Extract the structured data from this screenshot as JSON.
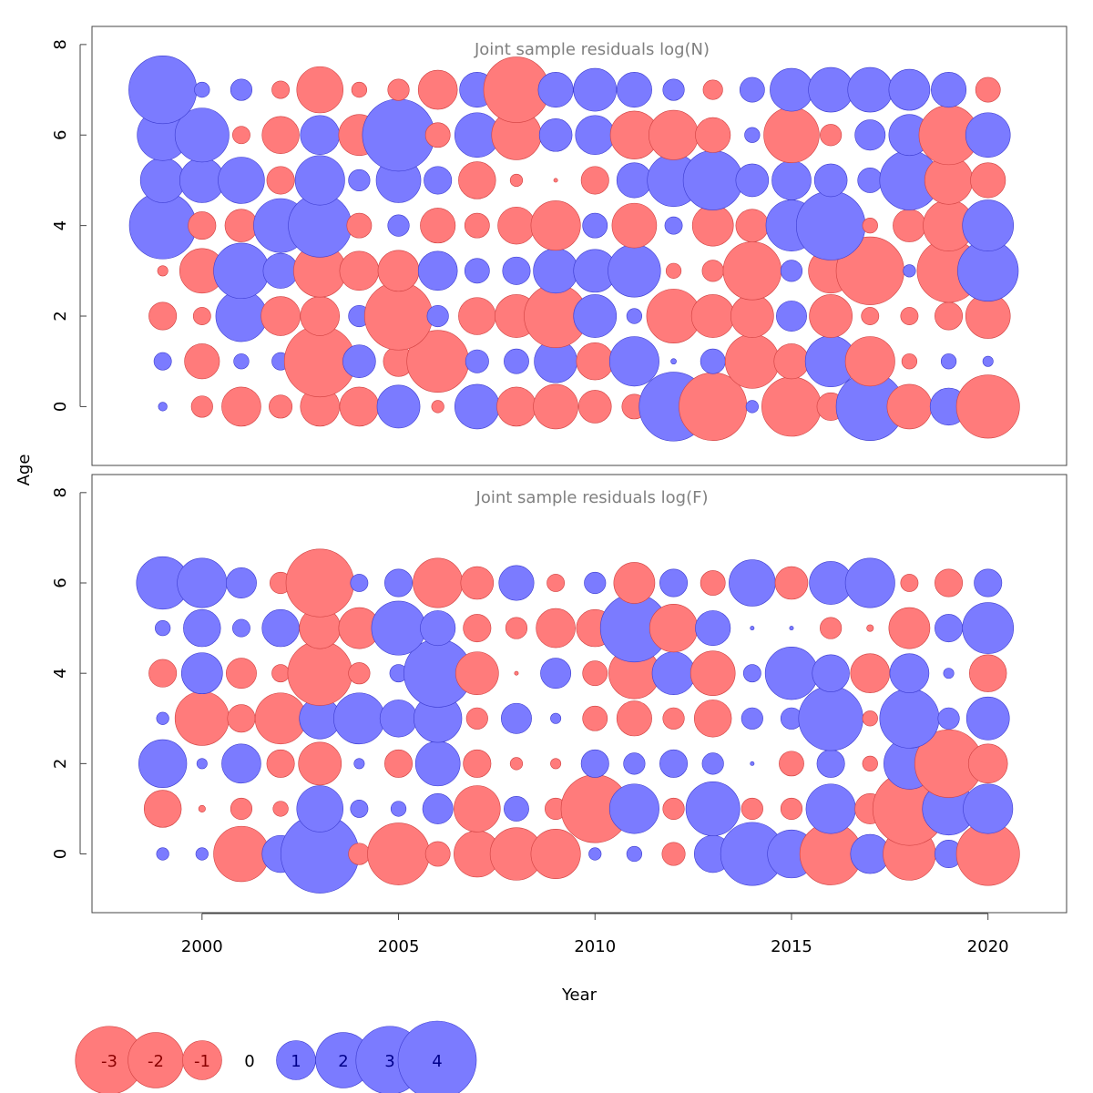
{
  "chart_data": {
    "type": "scatter",
    "subtype": "bubble",
    "xlabel": "Year",
    "ylabel": "Age",
    "xticks": [
      2000,
      2005,
      2010,
      2015,
      2020
    ],
    "yticks": [
      0,
      2,
      4,
      6,
      8
    ],
    "years": [
      1999,
      2000,
      2001,
      2002,
      2003,
      2004,
      2005,
      2006,
      2007,
      2008,
      2009,
      2010,
      2011,
      2012,
      2013,
      2014,
      2015,
      2016,
      2017,
      2018,
      2019,
      2020
    ],
    "colors": {
      "positive": "#7b7bff",
      "negative": "#ff7b7b",
      "positive_edge": "#3c3cd0",
      "negative_edge": "#d04040"
    },
    "panels": [
      {
        "title": "Joint sample residuals log(N)",
        "ylim": [
          -1.3,
          8.4
        ],
        "xlim": [
          1997.2,
          2022
        ],
        "ages": [
          0,
          1,
          2,
          3,
          4,
          5,
          6,
          7
        ],
        "residuals": [
          [
            0.05,
            -0.3,
            -1.0,
            -0.35,
            -1.0,
            -1.0,
            1.2,
            -0.1,
            1.3,
            -1.0,
            -1.3,
            -0.7,
            -0.4,
            3.1,
            -3.0,
            0.1,
            -2.3,
            -0.5,
            3.0,
            -1.3,
            0.9,
            -2.6
          ],
          [
            0.2,
            -0.8,
            0.15,
            0.2,
            -3.3,
            0.7,
            -0.6,
            -2.5,
            0.35,
            0.4,
            1.2,
            -0.9,
            1.6,
            0.02,
            0.4,
            -1.9,
            -0.8,
            1.7,
            -1.6,
            -0.15,
            0.15,
            0.07
          ],
          [
            -0.5,
            -0.2,
            1.7,
            -1.0,
            -1.0,
            0.3,
            -3.0,
            0.3,
            -0.9,
            -1.2,
            -2.6,
            1.2,
            0.15,
            -1.9,
            -1.2,
            -1.2,
            0.6,
            -1.2,
            -0.2,
            -0.2,
            -0.5,
            -1.3
          ],
          [
            -0.07,
            -1.3,
            2.0,
            0.8,
            -1.8,
            -1.0,
            -1.1,
            1.0,
            0.4,
            0.5,
            1.3,
            1.2,
            1.8,
            -0.15,
            -0.3,
            -2.2,
            0.3,
            -1.3,
            -3.0,
            0.1,
            -2.6,
            2.4
          ],
          [
            2.9,
            -0.5,
            -0.7,
            1.9,
            2.6,
            -0.4,
            0.3,
            -0.8,
            -0.4,
            -0.9,
            -1.6,
            0.4,
            -1.3,
            0.2,
            -1.1,
            -0.7,
            1.7,
            3.1,
            -0.15,
            -0.7,
            -1.7,
            1.7
          ],
          [
            1.3,
            1.3,
            1.4,
            -0.5,
            1.6,
            0.3,
            1.3,
            0.5,
            -0.9,
            -0.1,
            -0.01,
            -0.5,
            0.8,
            1.8,
            2.3,
            0.7,
            1.0,
            0.7,
            0.4,
            2.3,
            -1.5,
            -0.8
          ],
          [
            1.7,
            1.9,
            -0.2,
            -0.9,
            1.0,
            -1.1,
            3.4,
            -0.4,
            1.3,
            -1.6,
            0.7,
            1.0,
            -1.5,
            -1.6,
            -0.8,
            0.15,
            -2.0,
            -0.3,
            0.6,
            1.1,
            -2.3,
            1.3
          ],
          [
            3.0,
            0.15,
            0.3,
            -0.2,
            -1.4,
            -0.15,
            -0.3,
            -1.0,
            0.8,
            -2.8,
            0.8,
            1.2,
            0.8,
            0.3,
            -0.25,
            0.4,
            1.2,
            1.3,
            1.3,
            1.1,
            0.8,
            -0.4
          ]
        ]
      },
      {
        "title": "Joint sample residuals log(F)",
        "ylim": [
          -1.3,
          8.4
        ],
        "xlim": [
          1997.2,
          2022
        ],
        "ages": [
          0,
          1,
          2,
          3,
          4,
          5,
          6
        ],
        "residuals": [
          [
            0.1,
            0.1,
            -2.0,
            0.9,
            4.0,
            -0.3,
            -2.5,
            -0.4,
            -1.4,
            -1.8,
            -1.6,
            0.1,
            0.15,
            -0.35,
            0.9,
            2.6,
            1.5,
            -2.5,
            1.0,
            -1.8,
            0.5,
            -2.6
          ],
          [
            -0.9,
            -0.03,
            -0.3,
            -0.15,
            1.4,
            0.2,
            0.15,
            0.6,
            -1.4,
            0.4,
            -0.3,
            -3.0,
            1.6,
            -0.3,
            1.9,
            -0.3,
            -0.3,
            1.6,
            -0.6,
            -3.5,
            1.8,
            1.6
          ],
          [
            1.5,
            0.07,
            1.0,
            -0.5,
            -1.2,
            0.07,
            -0.5,
            1.3,
            -0.5,
            -0.1,
            -0.07,
            0.5,
            0.3,
            0.5,
            0.3,
            0.01,
            -0.4,
            0.5,
            -0.15,
            1.7,
            -3.0,
            -1.0
          ],
          [
            0.1,
            -1.9,
            -0.5,
            -1.7,
            1.1,
            1.7,
            0.9,
            1.5,
            -0.3,
            0.6,
            0.07,
            -0.4,
            -0.8,
            -0.3,
            -0.9,
            0.3,
            0.3,
            2.7,
            -0.15,
            2.3,
            0.3,
            1.2
          ],
          [
            -0.5,
            1.1,
            -0.6,
            -0.2,
            -2.7,
            -0.3,
            0.2,
            3.0,
            -1.2,
            -0.01,
            0.6,
            -0.4,
            -1.7,
            1.2,
            -1.3,
            0.2,
            1.8,
            0.9,
            -1.0,
            1.0,
            0.07,
            -0.9
          ],
          [
            0.15,
            0.9,
            0.2,
            0.9,
            -1.1,
            -1.1,
            1.9,
            0.8,
            -0.5,
            -0.3,
            -1.0,
            -0.9,
            3.0,
            -1.5,
            0.8,
            0.01,
            0.01,
            -0.3,
            -0.03,
            -1.1,
            0.5,
            1.7
          ],
          [
            1.8,
            1.6,
            0.6,
            -0.3,
            -3.0,
            0.2,
            0.5,
            -1.6,
            -0.7,
            0.8,
            -0.2,
            0.3,
            -1.1,
            0.5,
            -0.4,
            1.4,
            -0.7,
            1.2,
            1.6,
            -0.2,
            -0.5,
            0.5
          ]
        ]
      }
    ],
    "legend": {
      "position": "bottom-left",
      "entries": [
        {
          "label": "-3",
          "value": -3
        },
        {
          "label": "-2",
          "value": -2
        },
        {
          "label": "-1",
          "value": -1
        },
        {
          "label": "0",
          "value": 0
        },
        {
          "label": "1",
          "value": 1
        },
        {
          "label": "2",
          "value": 2
        },
        {
          "label": "3",
          "value": 3
        },
        {
          "label": "4",
          "value": 4
        }
      ]
    }
  }
}
